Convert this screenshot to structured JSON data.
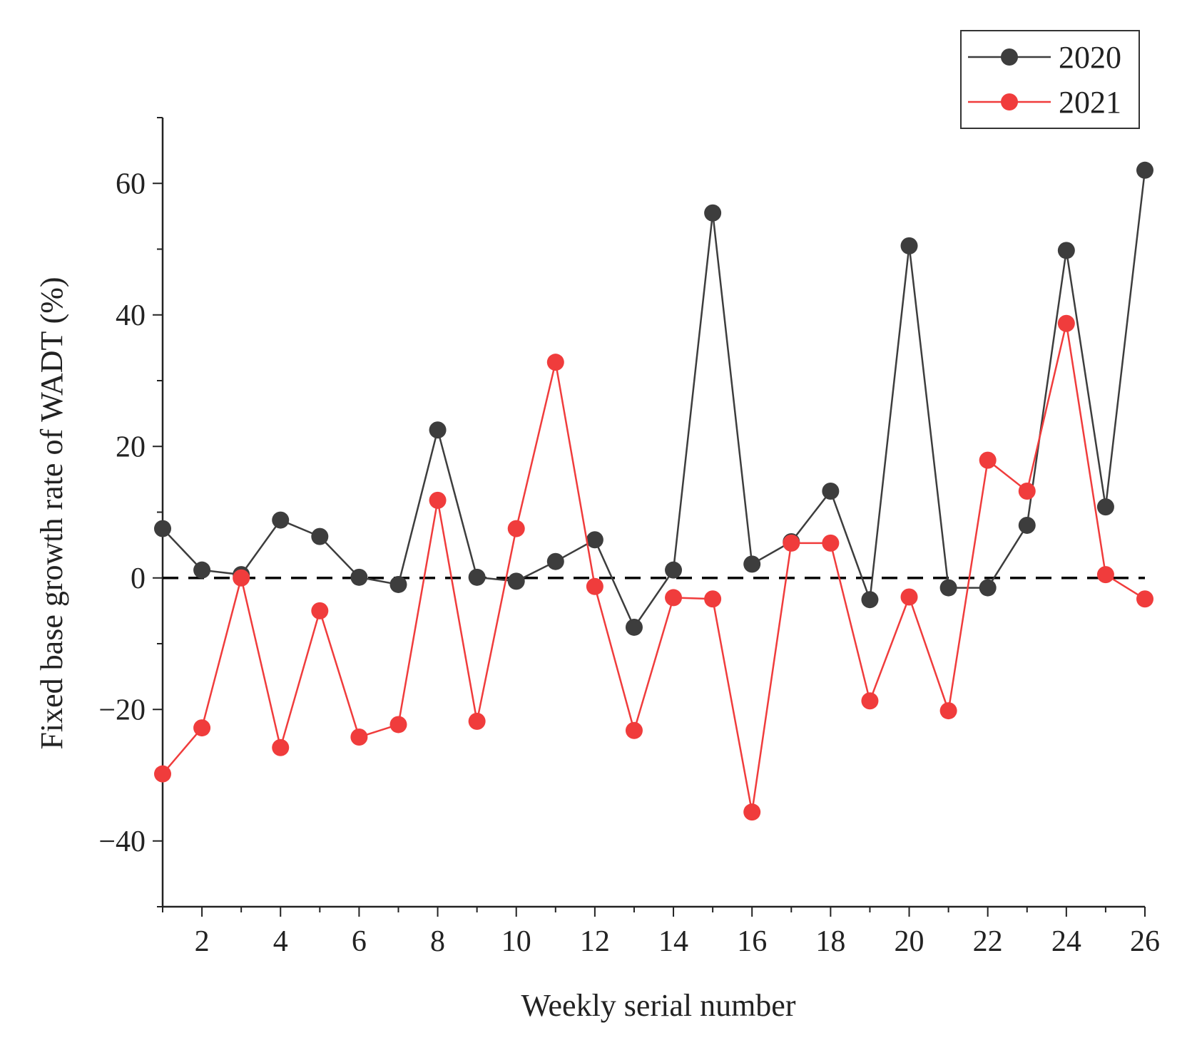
{
  "chart_data": {
    "type": "line",
    "title": "",
    "xlabel": "Weekly serial number",
    "ylabel": "Fixed base growth rate of WADT (%)",
    "x": [
      1,
      2,
      3,
      4,
      5,
      6,
      7,
      8,
      9,
      10,
      11,
      12,
      13,
      14,
      15,
      16,
      17,
      18,
      19,
      20,
      21,
      22,
      23,
      24,
      25,
      26
    ],
    "xlim": [
      1,
      26
    ],
    "ylim": [
      -50,
      70
    ],
    "x_ticks_major": [
      2,
      4,
      6,
      8,
      10,
      12,
      14,
      16,
      18,
      20,
      22,
      24,
      26
    ],
    "x_tick_labels": [
      "2",
      "4",
      "6",
      "8",
      "10",
      "12",
      "14",
      "16",
      "18",
      "20",
      "22",
      "24",
      "26"
    ],
    "y_ticks_major": [
      -40,
      -20,
      0,
      20,
      40,
      60
    ],
    "y_tick_labels": [
      "−40",
      "−20",
      "0",
      "20",
      "40",
      "60"
    ],
    "reference_line": {
      "y": 0,
      "style": "dashed",
      "color": "#000000"
    },
    "legend_position": "top-right",
    "series": [
      {
        "name": "2020",
        "color": "#3d3d3d",
        "values": [
          7.5,
          1.2,
          0.5,
          8.8,
          6.3,
          0.1,
          -1.0,
          22.5,
          0.1,
          -0.5,
          2.5,
          5.8,
          -7.5,
          1.2,
          55.5,
          2.1,
          5.5,
          13.2,
          -3.3,
          50.5,
          -1.5,
          -1.5,
          8.0,
          49.8,
          10.8,
          62.0
        ]
      },
      {
        "name": "2021",
        "color": "#f03c3c",
        "values": [
          -29.8,
          -22.8,
          0.0,
          -25.8,
          -5.0,
          -24.2,
          -22.3,
          11.8,
          -21.8,
          7.5,
          32.8,
          -1.3,
          -23.2,
          -3.0,
          -3.2,
          -35.6,
          5.3,
          5.3,
          -18.7,
          -2.9,
          -20.2,
          17.9,
          13.2,
          38.7,
          0.5,
          -3.2
        ]
      }
    ]
  }
}
